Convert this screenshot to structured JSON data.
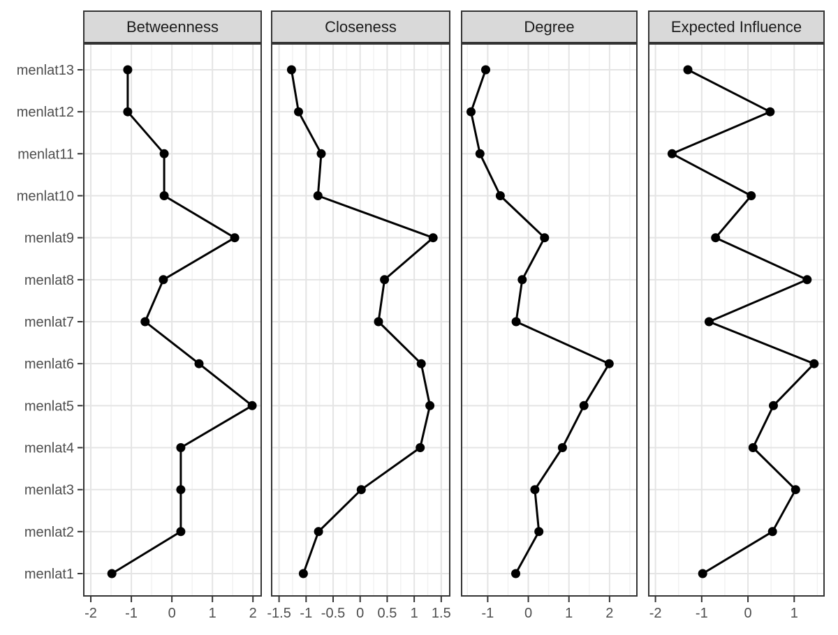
{
  "colors": {
    "background": "#ffffff",
    "strip_fill": "#d9d9d9",
    "strip_border": "#333333",
    "panel_border": "#333333",
    "grid_major": "#e4e4e4",
    "grid_minor": "#f1f1f1",
    "line": "#000000",
    "point": "#000000",
    "axis_text": "#4d4d4d",
    "strip_text": "#1a1a1a"
  },
  "chart_data": {
    "type": "line",
    "title": "",
    "layout": "4 faceted panels, shared categorical y-axis, free x scales, grid on, no legend",
    "categories_top_to_bottom": [
      "menlat13",
      "menlat12",
      "menlat11",
      "menlat10",
      "menlat9",
      "menlat8",
      "menlat7",
      "menlat6",
      "menlat5",
      "menlat4",
      "menlat3",
      "menlat2",
      "menlat1"
    ],
    "facets": [
      {
        "label": "Betweenness",
        "xlim": [
          -2.19,
          2.22
        ],
        "ticks": [
          -2,
          -1,
          0,
          1,
          2
        ],
        "tick_labels": [
          "-2",
          "-1",
          "0",
          "1",
          "2"
        ],
        "minor_step": 0.5,
        "values": [
          -1.09,
          -1.09,
          -0.19,
          -0.19,
          1.55,
          -0.21,
          -0.66,
          0.67,
          1.98,
          0.22,
          0.22,
          0.22,
          -1.48
        ]
      },
      {
        "label": "Closeness",
        "xlim": [
          -1.65,
          1.67
        ],
        "ticks": [
          -1.5,
          -1,
          -0.5,
          0,
          0.5,
          1,
          1.5
        ],
        "tick_labels": [
          "-1.5",
          "-1",
          "-0.5",
          "0",
          "0.5",
          "1",
          "1.5"
        ],
        "minor_step": 0.25,
        "values": [
          -1.27,
          -1.14,
          -0.72,
          -0.78,
          1.35,
          0.45,
          0.34,
          1.13,
          1.29,
          1.11,
          0.02,
          -0.77,
          -1.05
        ]
      },
      {
        "label": "Degree",
        "xlim": [
          -1.66,
          2.69
        ],
        "ticks": [
          -1,
          0,
          1,
          2
        ],
        "tick_labels": [
          "-1",
          "0",
          "1",
          "2"
        ],
        "minor_step": 0.5,
        "values": [
          -1.05,
          -1.41,
          -1.19,
          -0.69,
          0.4,
          -0.15,
          -0.3,
          1.99,
          1.37,
          0.84,
          0.16,
          0.26,
          -0.31
        ]
      },
      {
        "label": "Expected Influence",
        "xlim": [
          -2.16,
          1.66
        ],
        "ticks": [
          -2,
          -1,
          0,
          1
        ],
        "tick_labels": [
          "-2",
          "-1",
          "0",
          "1"
        ],
        "minor_step": 0.5,
        "values": [
          -1.3,
          0.48,
          -1.64,
          0.07,
          -0.7,
          1.28,
          -0.84,
          1.43,
          0.55,
          0.11,
          1.03,
          0.53,
          -0.98
        ]
      }
    ]
  }
}
